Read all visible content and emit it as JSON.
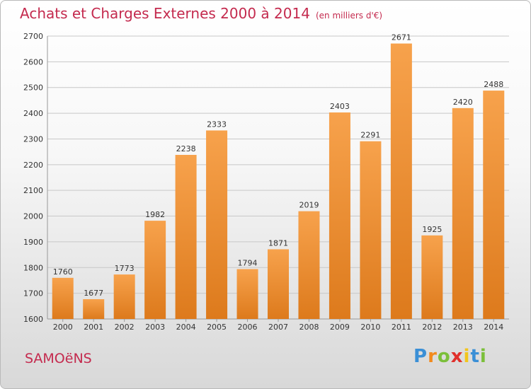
{
  "header": {
    "title": "Achats et Charges Externes 2000 à 2014",
    "unit": "(en milliers d'€)"
  },
  "footer": {
    "commune": "SAMOëNS",
    "logo": {
      "letters": [
        "P",
        "r",
        "o",
        "x",
        "i",
        "t",
        "i"
      ],
      "colors": [
        "#3a8fd6",
        "#f28a1d",
        "#7bbf3a",
        "#e0302b",
        "#f2c51d",
        "#3a8fd6",
        "#7bbf3a"
      ]
    }
  },
  "chart_data": {
    "type": "bar",
    "title": "Achats et Charges Externes 2000 à 2014",
    "subtitle": "(en milliers d'€)",
    "categories": [
      "2000",
      "2001",
      "2002",
      "2003",
      "2004",
      "2005",
      "2006",
      "2007",
      "2008",
      "2009",
      "2010",
      "2011",
      "2012",
      "2013",
      "2014"
    ],
    "values": [
      1760,
      1677,
      1773,
      1982,
      2238,
      2333,
      1794,
      1871,
      2019,
      2403,
      2291,
      2671,
      1925,
      2420,
      2488
    ],
    "ylim": [
      1600,
      2700
    ],
    "yticks": [
      1600,
      1700,
      1800,
      1900,
      2000,
      2100,
      2200,
      2300,
      2400,
      2500,
      2600,
      2700
    ],
    "grid": true,
    "colors": {
      "bar_light": "#f7a24c",
      "bar_dark": "#dd7a1c",
      "grid": "#c8c8c8",
      "title": "#c42a4e"
    }
  }
}
